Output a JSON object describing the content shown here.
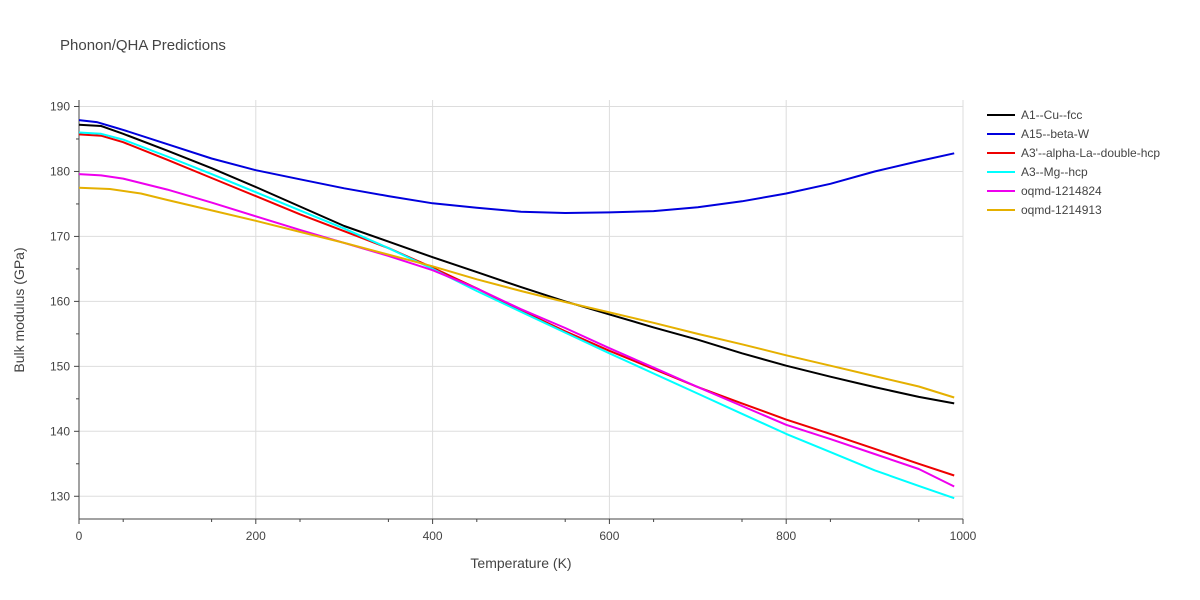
{
  "chart_data": {
    "type": "line",
    "title": "Phonon/QHA Predictions",
    "xlabel": "Temperature (K)",
    "ylabel": "Bulk modulus (GPa)",
    "xlim": [
      0,
      1000
    ],
    "ylim": [
      126.5,
      191
    ],
    "xticks": [
      0,
      200,
      400,
      600,
      800,
      1000
    ],
    "yticks": [
      130,
      140,
      150,
      160,
      170,
      180,
      190
    ],
    "grid": true,
    "legend_position": "top-right",
    "series": [
      {
        "name": "A1--Cu--fcc",
        "color": "#000000",
        "x": [
          0,
          25,
          50,
          100,
          150,
          200,
          250,
          300,
          350,
          400,
          450,
          500,
          550,
          600,
          650,
          700,
          750,
          800,
          850,
          900,
          950,
          990
        ],
        "y": [
          187.2,
          187.0,
          185.8,
          183.2,
          180.5,
          177.6,
          174.6,
          171.6,
          169.2,
          166.8,
          164.5,
          162.2,
          160.0,
          158.0,
          156.0,
          154.1,
          152.0,
          150.1,
          148.4,
          146.8,
          145.3,
          144.3
        ]
      },
      {
        "name": "A15--beta-W",
        "color": "#0000dd",
        "x": [
          0,
          20,
          50,
          100,
          150,
          200,
          250,
          300,
          350,
          400,
          450,
          500,
          550,
          600,
          650,
          700,
          750,
          800,
          850,
          900,
          950,
          990
        ],
        "y": [
          187.9,
          187.6,
          186.4,
          184.2,
          182.0,
          180.2,
          178.8,
          177.4,
          176.2,
          175.1,
          174.4,
          173.8,
          173.6,
          173.7,
          173.9,
          174.5,
          175.4,
          176.6,
          178.1,
          180.0,
          181.6,
          182.8
        ]
      },
      {
        "name": "A3'--alpha-La--double-hcp",
        "color": "#ee0000",
        "x": [
          0,
          25,
          50,
          100,
          150,
          200,
          250,
          300,
          350,
          400,
          450,
          500,
          550,
          600,
          650,
          700,
          750,
          800,
          850,
          900,
          950,
          990
        ],
        "y": [
          185.7,
          185.5,
          184.5,
          181.8,
          179.0,
          176.2,
          173.4,
          170.8,
          168.2,
          165.2,
          162.0,
          158.6,
          155.4,
          152.4,
          149.6,
          146.8,
          144.3,
          141.8,
          139.6,
          137.3,
          135.0,
          133.2
        ]
      },
      {
        "name": "A3--Mg--hcp",
        "color": "#00ffff",
        "x": [
          0,
          25,
          50,
          100,
          150,
          200,
          250,
          300,
          350,
          400,
          450,
          500,
          550,
          600,
          650,
          700,
          750,
          800,
          850,
          900,
          950,
          990
        ],
        "y": [
          186.0,
          185.8,
          184.9,
          182.3,
          179.6,
          176.8,
          174.0,
          171.2,
          168.2,
          165.0,
          161.6,
          158.4,
          155.2,
          152.0,
          148.9,
          145.8,
          142.7,
          139.6,
          136.8,
          134.0,
          131.6,
          129.7
        ]
      },
      {
        "name": "oqmd-1214824",
        "color": "#ee00ee",
        "x": [
          0,
          25,
          50,
          100,
          150,
          200,
          250,
          300,
          350,
          400,
          450,
          500,
          550,
          600,
          650,
          700,
          750,
          800,
          850,
          900,
          950,
          990
        ],
        "y": [
          179.6,
          179.4,
          178.9,
          177.2,
          175.2,
          173.1,
          171.0,
          169.0,
          167.0,
          164.8,
          162.0,
          158.8,
          155.9,
          152.8,
          149.8,
          146.8,
          143.9,
          141.0,
          138.8,
          136.5,
          134.2,
          131.5
        ]
      },
      {
        "name": "oqmd-1214913",
        "color": "#e5b000",
        "x": [
          0,
          35,
          70,
          100,
          150,
          200,
          250,
          300,
          350,
          400,
          450,
          500,
          550,
          600,
          650,
          700,
          750,
          800,
          850,
          900,
          950,
          990
        ],
        "y": [
          177.5,
          177.3,
          176.6,
          175.6,
          174.0,
          172.4,
          170.7,
          169.0,
          167.2,
          165.4,
          163.4,
          161.6,
          159.9,
          158.3,
          156.7,
          155.0,
          153.4,
          151.7,
          150.1,
          148.5,
          146.9,
          145.2
        ]
      }
    ]
  }
}
